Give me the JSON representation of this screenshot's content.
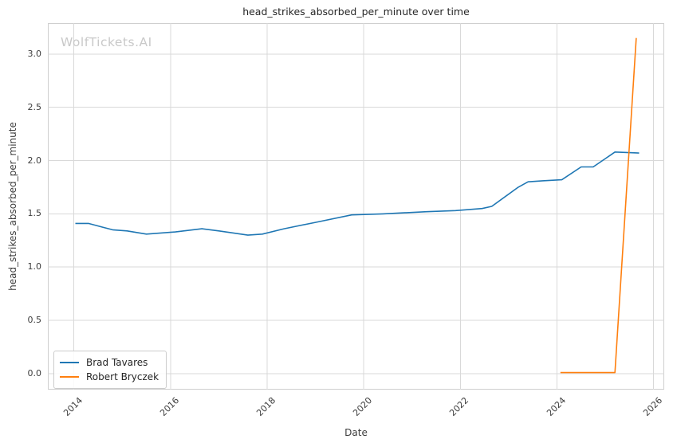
{
  "watermark": {
    "text": "WolfTickets.AI"
  },
  "chart_data": {
    "type": "line",
    "title": "head_strikes_absorbed_per_minute over time",
    "xlabel": "Date",
    "ylabel": "head_strikes_absorbed_per_minute",
    "x_ticks": [
      2014,
      2016,
      2018,
      2020,
      2022,
      2024,
      2026
    ],
    "y_ticks": [
      "0.0",
      "0.5",
      "1.0",
      "1.5",
      "2.0",
      "2.5",
      "3.0"
    ],
    "y_tick_values": [
      0.0,
      0.5,
      1.0,
      1.5,
      2.0,
      2.5,
      3.0
    ],
    "xlim": [
      2013.46,
      2026.22
    ],
    "ylim": [
      -0.15,
      3.29
    ],
    "grid": true,
    "legend_position": "lower left",
    "series": [
      {
        "name": "Brad Tavares",
        "color": "#1f77b4",
        "x": [
          2014.03,
          2014.3,
          2014.8,
          2015.1,
          2015.5,
          2016.1,
          2016.65,
          2017.0,
          2017.6,
          2017.9,
          2018.35,
          2019.0,
          2019.75,
          2020.4,
          2021.3,
          2021.9,
          2022.45,
          2022.65,
          2023.2,
          2023.4,
          2023.7,
          2024.1,
          2024.5,
          2024.75,
          2025.2,
          2025.7
        ],
        "y": [
          1.41,
          1.41,
          1.35,
          1.34,
          1.31,
          1.33,
          1.36,
          1.34,
          1.3,
          1.31,
          1.36,
          1.42,
          1.49,
          1.5,
          1.52,
          1.53,
          1.55,
          1.57,
          1.75,
          1.8,
          1.81,
          1.82,
          1.94,
          1.94,
          2.08,
          2.07
        ]
      },
      {
        "name": "Robert Bryczek",
        "color": "#ff7f0e",
        "x": [
          2024.07,
          2024.6,
          2025.2,
          2025.64
        ],
        "y": [
          0.01,
          0.01,
          0.01,
          3.15
        ]
      }
    ],
    "colors": {
      "grid": "#d9d9d9",
      "spine": "#cfcfcf",
      "tick_text": "#3d3d3d",
      "title_text": "#262626",
      "watermark": "#c9c9c9"
    }
  }
}
